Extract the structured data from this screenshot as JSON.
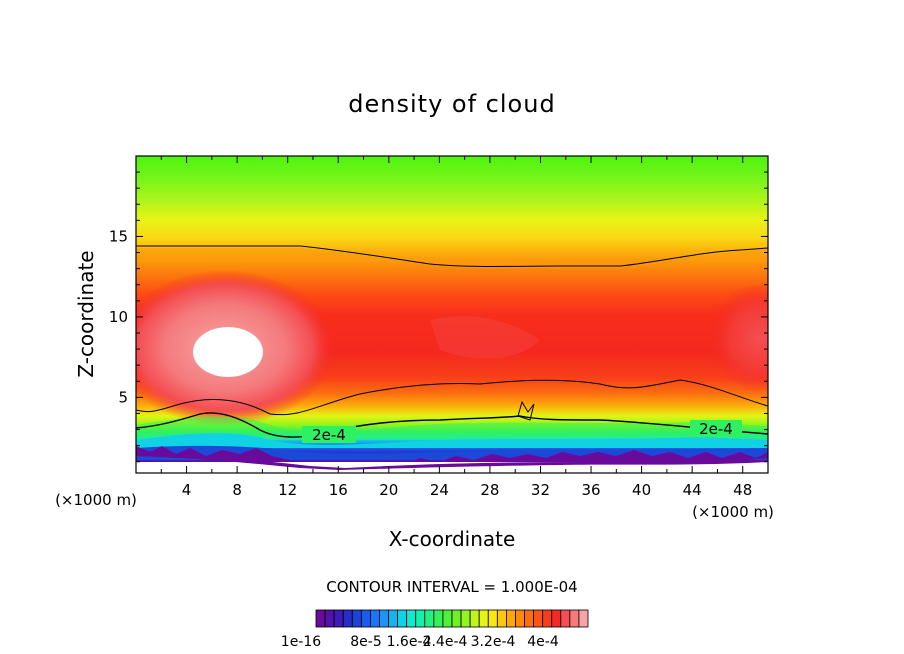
{
  "chart_data": {
    "type": "heatmap",
    "title": "density of cloud",
    "xlabel": "X-coordinate",
    "ylabel": "Z-coordinate",
    "x_unit_left": "(×1000 m)",
    "x_unit_right": "(×1000 m)",
    "xlim": [
      0,
      50
    ],
    "ylim": [
      0.3,
      20
    ],
    "xticks": [
      4,
      8,
      12,
      16,
      20,
      24,
      28,
      32,
      36,
      40,
      44,
      48
    ],
    "xtick_labels": [
      "4",
      "8",
      "12",
      "16",
      "20",
      "24",
      "28",
      "32",
      "36",
      "40",
      "44",
      "48"
    ],
    "yticks": [
      5,
      10,
      15
    ],
    "ytick_labels": [
      "5",
      "10",
      "15"
    ],
    "contour_labels": [
      {
        "text": "2e-4",
        "x": 15.5,
        "z": 2.3
      },
      {
        "text": "2e-4",
        "x": 46.5,
        "z": 2.6
      }
    ],
    "contour_interval_text": "CONTOUR INTERVAL = 1.000E-04",
    "colorbar": {
      "colors": [
        "#6a0a9a",
        "#5012a8",
        "#3e1cb8",
        "#2a2cc8",
        "#1e42d8",
        "#1a5aec",
        "#1c74f6",
        "#1e94f8",
        "#14b4ee",
        "#10d2e4",
        "#10ead2",
        "#14f0b0",
        "#22f084",
        "#36f05a",
        "#50f03a",
        "#70f026",
        "#96f41e",
        "#bef41a",
        "#e4f416",
        "#fae612",
        "#fac80e",
        "#fca80c",
        "#fc880c",
        "#fc6c10",
        "#fc5414",
        "#f83c1c",
        "#f42a26",
        "#f44e52",
        "#f47a7c",
        "#f8a4a6"
      ],
      "labels": [
        "1e-16",
        "8e-5",
        "1.6e-4",
        "2.4e-4",
        "3.2e-4",
        "4e-4"
      ]
    }
  }
}
